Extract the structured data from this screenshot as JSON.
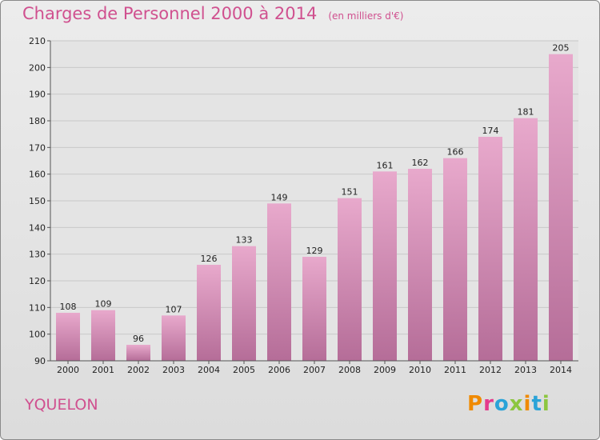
{
  "header": {
    "title": "Charges de Personnel 2000 à 2014",
    "subtitle": "(en milliers d'€)"
  },
  "footer": {
    "commune": "YQUELON",
    "logo": "Proxiti"
  },
  "colors": {
    "title": "#d0508f",
    "bar_top": "#e8a9cc",
    "bar_bottom": "#b56d98",
    "logo": [
      "#f08a00",
      "#e53a8c",
      "#2aa3d8",
      "#8cc63f",
      "#f08a00",
      "#2aa3d8",
      "#8cc63f"
    ]
  },
  "chart_data": {
    "type": "bar",
    "title": "Charges de Personnel 2000 à 2014",
    "subtitle": "(en milliers d'€)",
    "categories": [
      "2000",
      "2001",
      "2002",
      "2003",
      "2004",
      "2005",
      "2006",
      "2007",
      "2008",
      "2009",
      "2010",
      "2011",
      "2012",
      "2013",
      "2014"
    ],
    "values": [
      108,
      109,
      96,
      107,
      126,
      133,
      149,
      129,
      151,
      161,
      162,
      166,
      174,
      181,
      205
    ],
    "ylim": [
      90,
      210
    ],
    "yticks": [
      90,
      100,
      110,
      120,
      130,
      140,
      150,
      160,
      170,
      180,
      190,
      200,
      210
    ],
    "grid": true,
    "data_labels": true
  }
}
